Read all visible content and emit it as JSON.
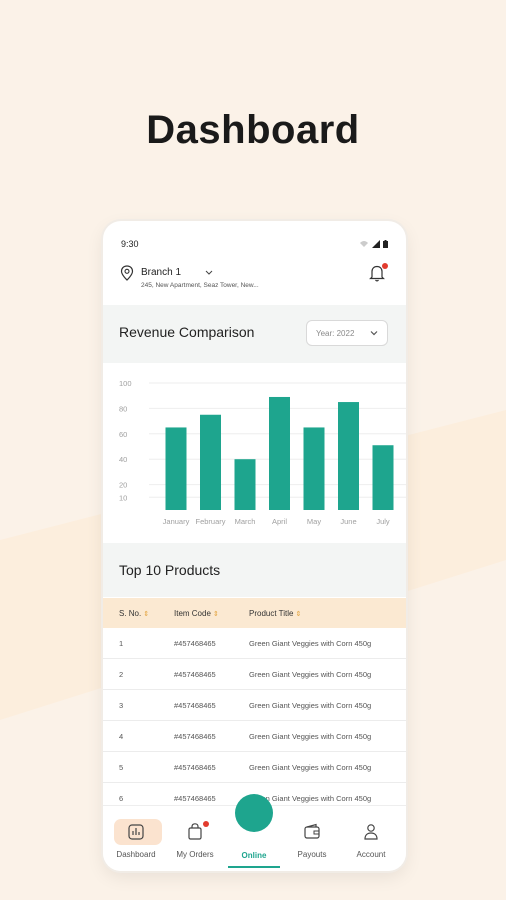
{
  "hero": {
    "title": "Dashboard"
  },
  "status_bar": {
    "time": "9:30"
  },
  "branch": {
    "name": "Branch 1",
    "address": "245, New Apartment, Seaz Tower, New..."
  },
  "revenue": {
    "title": "Revenue Comparison",
    "year_select": "Year: 2022"
  },
  "chart_data": {
    "type": "bar",
    "title": "Revenue Comparison",
    "xlabel": "",
    "ylabel": "",
    "categories": [
      "January",
      "February",
      "March",
      "April",
      "May",
      "June",
      "July"
    ],
    "values": [
      65,
      75,
      40,
      89,
      65,
      85,
      51
    ],
    "yticks": [
      10,
      20,
      40,
      60,
      80,
      100
    ],
    "ylim": [
      0,
      100
    ],
    "grid": true,
    "color": "#1ea58e"
  },
  "top_products": {
    "title": "Top 10 Products",
    "columns": [
      "S. No.",
      "Item Code",
      "Product Title"
    ],
    "rows": [
      [
        "1",
        "#457468465",
        "Green Giant Veggies with Corn 450g"
      ],
      [
        "2",
        "#457468465",
        "Green Giant Veggies with Corn 450g"
      ],
      [
        "3",
        "#457468465",
        "Green Giant Veggies with Corn 450g"
      ],
      [
        "4",
        "#457468465",
        "Green Giant Veggies with Corn 450g"
      ],
      [
        "5",
        "#457468465",
        "Green Giant Veggies with Corn 450g"
      ],
      [
        "6",
        "#457468465",
        "Green Giant Veggies with Corn 450g"
      ]
    ]
  },
  "nav": {
    "dashboard": "Dashboard",
    "my_orders": "My Orders",
    "online": "Online",
    "payouts": "Payouts",
    "account": "Account"
  },
  "colors": {
    "accent": "#1ea58e",
    "background": "#fbf2e8",
    "table_header": "#fbe9d2",
    "notification": "#e23b2e"
  }
}
